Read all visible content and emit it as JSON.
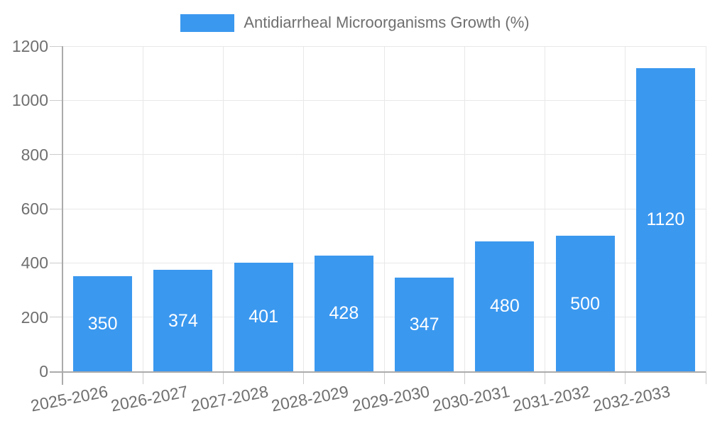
{
  "chart_data": {
    "type": "bar",
    "title": "Antidiarrheal Microorganisms Growth (%)",
    "legend_entries": [
      "Antidiarrheal Microorganisms Growth (%)"
    ],
    "legend_position": "top",
    "categories": [
      "2025-2026",
      "2026-2027",
      "2027-2028",
      "2028-2029",
      "2029-2030",
      "2030-2031",
      "2031-2032",
      "2032-2033"
    ],
    "values": [
      350,
      374,
      401,
      428,
      347,
      480,
      500,
      1120
    ],
    "value_labels_visible": true,
    "xlabel": "",
    "ylabel": "",
    "ylim": [
      0,
      1200
    ],
    "yticks": [
      0,
      200,
      400,
      600,
      800,
      1000,
      1200
    ],
    "grid": true,
    "x_label_rotation_deg": -11,
    "colors": {
      "bar": "#3B98EF",
      "value_label": "#FFFFFF",
      "axis_text": "#6F6F6F",
      "legend_text": "#6F6F6F",
      "gridline": "#E8E8E8",
      "tick": "#CCCCCC",
      "axis_line": "#ABABAB",
      "background": "#FFFFFF"
    }
  }
}
